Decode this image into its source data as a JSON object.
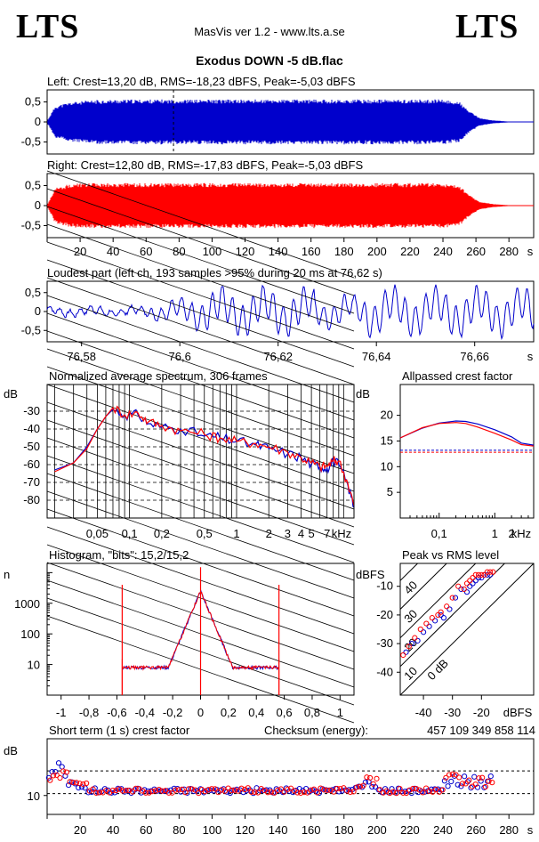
{
  "header": {
    "logo_left": "LTS",
    "logo_right": "LTS",
    "app_title": "MasVis ver 1.2 - www.lts.a.se",
    "file_title": "Exodus DOWN -5 dB.flac"
  },
  "colors": {
    "left": "#0000cc",
    "right": "#ff0000",
    "axes": "#000000"
  },
  "chart_data": [
    {
      "id": "left-waveform",
      "type": "area",
      "title": "Left: Crest=13,20 dB, RMS=-18,23 dBFS, Peak=-5,03 dBFS",
      "yticks": [
        "0,5",
        "0",
        "-0,5"
      ],
      "ylim": [
        -0.8,
        0.8
      ],
      "xlim": [
        0,
        295
      ],
      "envelope": {
        "x": [
          1,
          5,
          15,
          30,
          50,
          70,
          100,
          140,
          180,
          220,
          240,
          250,
          255,
          262,
          270,
          280,
          295
        ],
        "y": [
          0.1,
          0.4,
          0.5,
          0.55,
          0.56,
          0.56,
          0.56,
          0.56,
          0.56,
          0.56,
          0.56,
          0.5,
          0.3,
          0.1,
          0.04,
          0.01,
          0.0
        ]
      },
      "marker_x": 76.62
    },
    {
      "id": "right-waveform",
      "type": "area",
      "title": "Right: Crest=12,80 dB, RMS=-17,83 dBFS, Peak=-5,03 dBFS",
      "yticks": [
        "0,5",
        "0",
        "-0,5"
      ],
      "ylim": [
        -0.8,
        0.8
      ],
      "xlim": [
        0,
        295
      ],
      "xticks": [
        "20",
        "40",
        "60",
        "80",
        "100",
        "120",
        "140",
        "160",
        "180",
        "200",
        "220",
        "240",
        "260",
        "280"
      ],
      "xunit": "s",
      "envelope": {
        "x": [
          1,
          5,
          15,
          30,
          50,
          70,
          100,
          140,
          180,
          220,
          240,
          250,
          255,
          262,
          270,
          280,
          295
        ],
        "y": [
          0.1,
          0.45,
          0.55,
          0.56,
          0.56,
          0.56,
          0.56,
          0.56,
          0.56,
          0.56,
          0.56,
          0.5,
          0.3,
          0.1,
          0.04,
          0.01,
          0.0
        ]
      }
    },
    {
      "id": "loudest-part",
      "type": "line",
      "title": "Loudest part (left  ch, 193 samples >95% during 20 ms at 76,62 s)",
      "yticks": [
        "0,5",
        "0",
        "-0,5"
      ],
      "ylim": [
        -0.8,
        0.8
      ],
      "xlim": [
        76.573,
        76.672
      ],
      "xticks": [
        "76,58",
        "76,6",
        "76,62",
        "76,64",
        "76,66"
      ],
      "xunit": "s"
    },
    {
      "id": "average-spectrum",
      "type": "line",
      "title": "Normalized average spectrum, 306 frames",
      "ylabel": "dB",
      "yticks": [
        "-30",
        "-40",
        "-50",
        "-60",
        "-70",
        "-80"
      ],
      "ylim": [
        -90,
        -15
      ],
      "xticks": [
        "0,05",
        "0,1",
        "0,2",
        "0,5",
        "1",
        "2",
        "3",
        "4",
        "5",
        "7"
      ],
      "xunit": "kHz",
      "xscale": "log",
      "series": [
        {
          "color": "#0000cc",
          "x": [
            0.02,
            0.03,
            0.04,
            0.05,
            0.06,
            0.07,
            0.09,
            0.12,
            0.15,
            0.2,
            0.3,
            0.5,
            0.7,
            1,
            1.5,
            2,
            3,
            4,
            5,
            6,
            7,
            8,
            9,
            11,
            12.5
          ],
          "y": [
            -63,
            -59,
            -50,
            -40,
            -33,
            -29,
            -32,
            -32,
            -37,
            -39,
            -40,
            -44,
            -45,
            -47,
            -49,
            -51,
            -54,
            -56,
            -60,
            -61,
            -62,
            -58,
            -60,
            -72,
            -84
          ]
        },
        {
          "color": "#ff0000",
          "x": [
            0.02,
            0.03,
            0.04,
            0.05,
            0.06,
            0.07,
            0.09,
            0.12,
            0.15,
            0.2,
            0.3,
            0.5,
            0.7,
            1,
            1.5,
            2,
            3,
            4,
            5,
            6,
            7,
            8,
            9,
            11,
            12.5
          ],
          "y": [
            -64,
            -59,
            -51,
            -40,
            -33,
            -28,
            -32,
            -31,
            -36,
            -38,
            -41,
            -43,
            -45,
            -47,
            -48,
            -50,
            -53,
            -56,
            -59,
            -61,
            -61,
            -58,
            -58,
            -71,
            -83
          ]
        }
      ]
    },
    {
      "id": "allpassed-crest",
      "type": "line",
      "title": "Allpassed crest factor",
      "ylabel": "dB",
      "yticks": [
        "20",
        "15",
        "10",
        "5"
      ],
      "ylim": [
        0,
        26
      ],
      "xticks": [
        "0,1",
        "1",
        "2"
      ],
      "xunit": "kHz",
      "xscale": "log",
      "series": [
        {
          "color": "#0000cc",
          "x": [
            0.02,
            0.05,
            0.1,
            0.2,
            0.3,
            0.5,
            1,
            2,
            3,
            5
          ],
          "y": [
            15.6,
            17.5,
            18.5,
            18.9,
            18.8,
            18.3,
            17.2,
            15.8,
            14.6,
            14.2
          ]
        },
        {
          "color": "#ff0000",
          "x": [
            0.02,
            0.05,
            0.1,
            0.2,
            0.3,
            0.5,
            1,
            2,
            3,
            5
          ],
          "y": [
            15.6,
            17.6,
            18.4,
            18.6,
            18.4,
            17.7,
            16.5,
            15.2,
            14.3,
            14.0
          ]
        }
      ],
      "reference_lines": [
        {
          "color": "#0000cc",
          "y": 13.2
        },
        {
          "color": "#ff0000",
          "y": 12.8
        }
      ]
    },
    {
      "id": "histogram",
      "type": "line",
      "title": "Histogram, \"bits\": 15,2/15,2",
      "ylabel": "n",
      "yticks": [
        "1000",
        "100",
        "10"
      ],
      "ylim": [
        1,
        20000
      ],
      "yscale": "log",
      "xticks": [
        "-1",
        "-0,8",
        "-0,6",
        "-0,4",
        "-0,2",
        "0",
        "0,2",
        "0,4",
        "0,6",
        "0,8",
        "1"
      ],
      "xlim": [
        -1.1,
        1.1
      ]
    },
    {
      "id": "peak-vs-rms",
      "type": "scatter",
      "title": "Peak vs RMS level",
      "ylabel": "dBFS",
      "xlabel": "dBFS",
      "yticks": [
        "-10",
        "-20",
        "-30",
        "-40"
      ],
      "xticks": [
        "-40",
        "-30",
        "-20"
      ],
      "ylim": [
        -48,
        -2
      ],
      "xlim": [
        -48,
        -2
      ],
      "diagonal_labels": [
        "40",
        "30",
        "20",
        "10",
        "0 dB"
      ],
      "series": [
        {
          "color": "#0000cc",
          "x": [
            -46,
            -44,
            -42,
            -40,
            -38,
            -36,
            -34,
            -33,
            -31,
            -29,
            -27,
            -25,
            -24,
            -23,
            -22,
            -21,
            -20,
            -19,
            -18,
            -17
          ],
          "y": [
            -33,
            -30,
            -29,
            -26,
            -24,
            -22,
            -20,
            -21,
            -18,
            -14,
            -11,
            -12,
            -10,
            -9,
            -8,
            -7,
            -7,
            -6,
            -6,
            -6
          ]
        },
        {
          "color": "#ff0000",
          "x": [
            -47,
            -45,
            -43,
            -41,
            -39,
            -37,
            -35,
            -34,
            -32,
            -30,
            -28,
            -26,
            -25,
            -24,
            -23,
            -22,
            -21,
            -20,
            -19,
            -18,
            -17,
            -16
          ],
          "y": [
            -34,
            -31,
            -28,
            -25,
            -23,
            -21,
            -20,
            -19,
            -17,
            -14,
            -10,
            -11,
            -9,
            -8,
            -7,
            -6,
            -6,
            -6,
            -6,
            -5,
            -5,
            -5
          ]
        }
      ]
    },
    {
      "id": "short-term-crest",
      "type": "scatter",
      "title": "Short term (1 s) crest factor",
      "checksum_label": "Checksum (energy):",
      "checksum_value": "457 109 349 858 114",
      "ylabel": "dB",
      "yticks": [
        "10"
      ],
      "ylim": [
        5,
        25
      ],
      "xlim": [
        0,
        295
      ],
      "xticks": [
        "20",
        "40",
        "60",
        "80",
        "100",
        "120",
        "140",
        "160",
        "180",
        "200",
        "220",
        "240",
        "260",
        "280"
      ],
      "xunit": "s",
      "reference_lines": [
        16.5,
        10.5
      ]
    }
  ]
}
